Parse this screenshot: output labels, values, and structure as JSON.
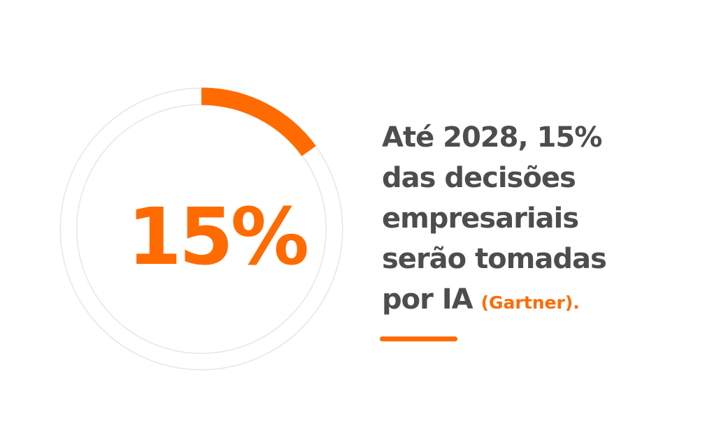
{
  "chart_data": {
    "type": "donut",
    "values": [
      15
    ],
    "value_labels": [
      "15%"
    ],
    "color": "#ff6b00",
    "track_color": "#e6e6e6",
    "text_lines": [
      "Até 2028, 15%",
      "das decisões",
      "empresariais",
      "serão tomadas",
      "por IA"
    ],
    "source": "(Gartner).",
    "text_color": "#4d4d4d"
  }
}
